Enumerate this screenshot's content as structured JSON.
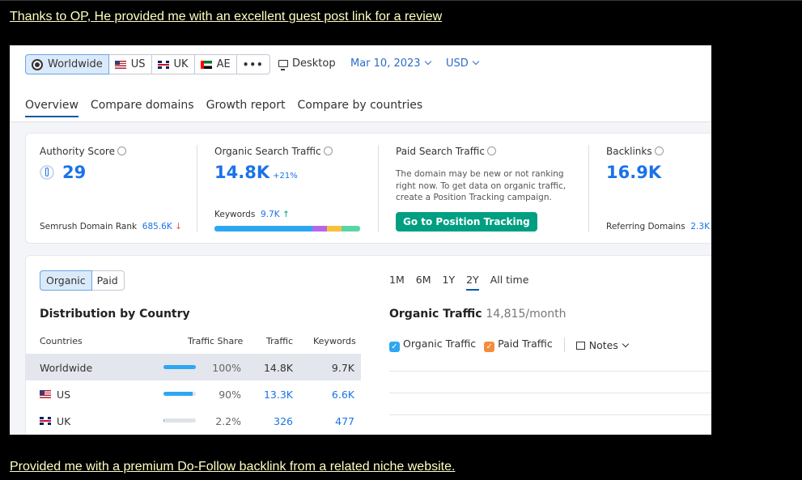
{
  "post": {
    "top_text": "Thanks to OP, He provided me with an excellent guest post link for a review",
    "bottom_text": "Provided me with a premium Do-Follow backlink from a related niche website."
  },
  "header": {
    "regions": [
      "Worldwide",
      "US",
      "UK",
      "AE",
      "•••"
    ],
    "device": "Desktop",
    "date": "Mar 10, 2023",
    "currency": "USD"
  },
  "tabs": [
    "Overview",
    "Compare domains",
    "Growth report",
    "Compare by countries"
  ],
  "metrics": {
    "authority": {
      "label": "Authority Score",
      "value": "29",
      "footer_label": "Semrush Domain Rank",
      "footer_value": "685.6K",
      "footer_arrow": "↓"
    },
    "organic": {
      "label": "Organic Search Traffic",
      "value": "14.8K",
      "delta": "+21%",
      "keywords_label": "Keywords",
      "keywords_value": "9.7K",
      "keywords_arrow": "↑"
    },
    "paid": {
      "label": "Paid Search Traffic",
      "text": "The domain may be new or not ranking right now. To get data on organic traffic, create a Position Tracking campaign.",
      "button": "Go to Position Tracking"
    },
    "backlinks": {
      "label": "Backlinks",
      "value": "16.9K",
      "footer_label": "Referring Domains",
      "footer_value": "2.3K"
    }
  },
  "distribution": {
    "toggle": [
      "Organic",
      "Paid"
    ],
    "title": "Distribution by Country",
    "columns": [
      "Countries",
      "Traffic Share",
      "Traffic",
      "Keywords"
    ],
    "rows": [
      {
        "country": "Worldwide",
        "share": "100%",
        "share_fraction": 1.0,
        "traffic": "14.8K",
        "keywords": "9.7K"
      },
      {
        "country": "US",
        "share": "90%",
        "share_fraction": 0.9,
        "traffic": "13.3K",
        "keywords": "6.6K"
      },
      {
        "country": "UK",
        "share": "2.2%",
        "share_fraction": 0.022,
        "traffic": "326",
        "keywords": "477"
      }
    ]
  },
  "traffic_chart": {
    "periods": [
      "1M",
      "6M",
      "1Y",
      "2Y",
      "All time"
    ],
    "active_period": "2Y",
    "title": "Organic Traffic",
    "subtitle": "14,815/month",
    "legend": [
      "Organic Traffic",
      "Paid Traffic"
    ],
    "notes_label": "Notes"
  },
  "colors": {
    "accent": "#1a73e8",
    "button": "#009f81",
    "keyword_bar": [
      "#2ea7f2",
      "#b567ec",
      "#f7c23b",
      "#5ad5a5"
    ]
  }
}
